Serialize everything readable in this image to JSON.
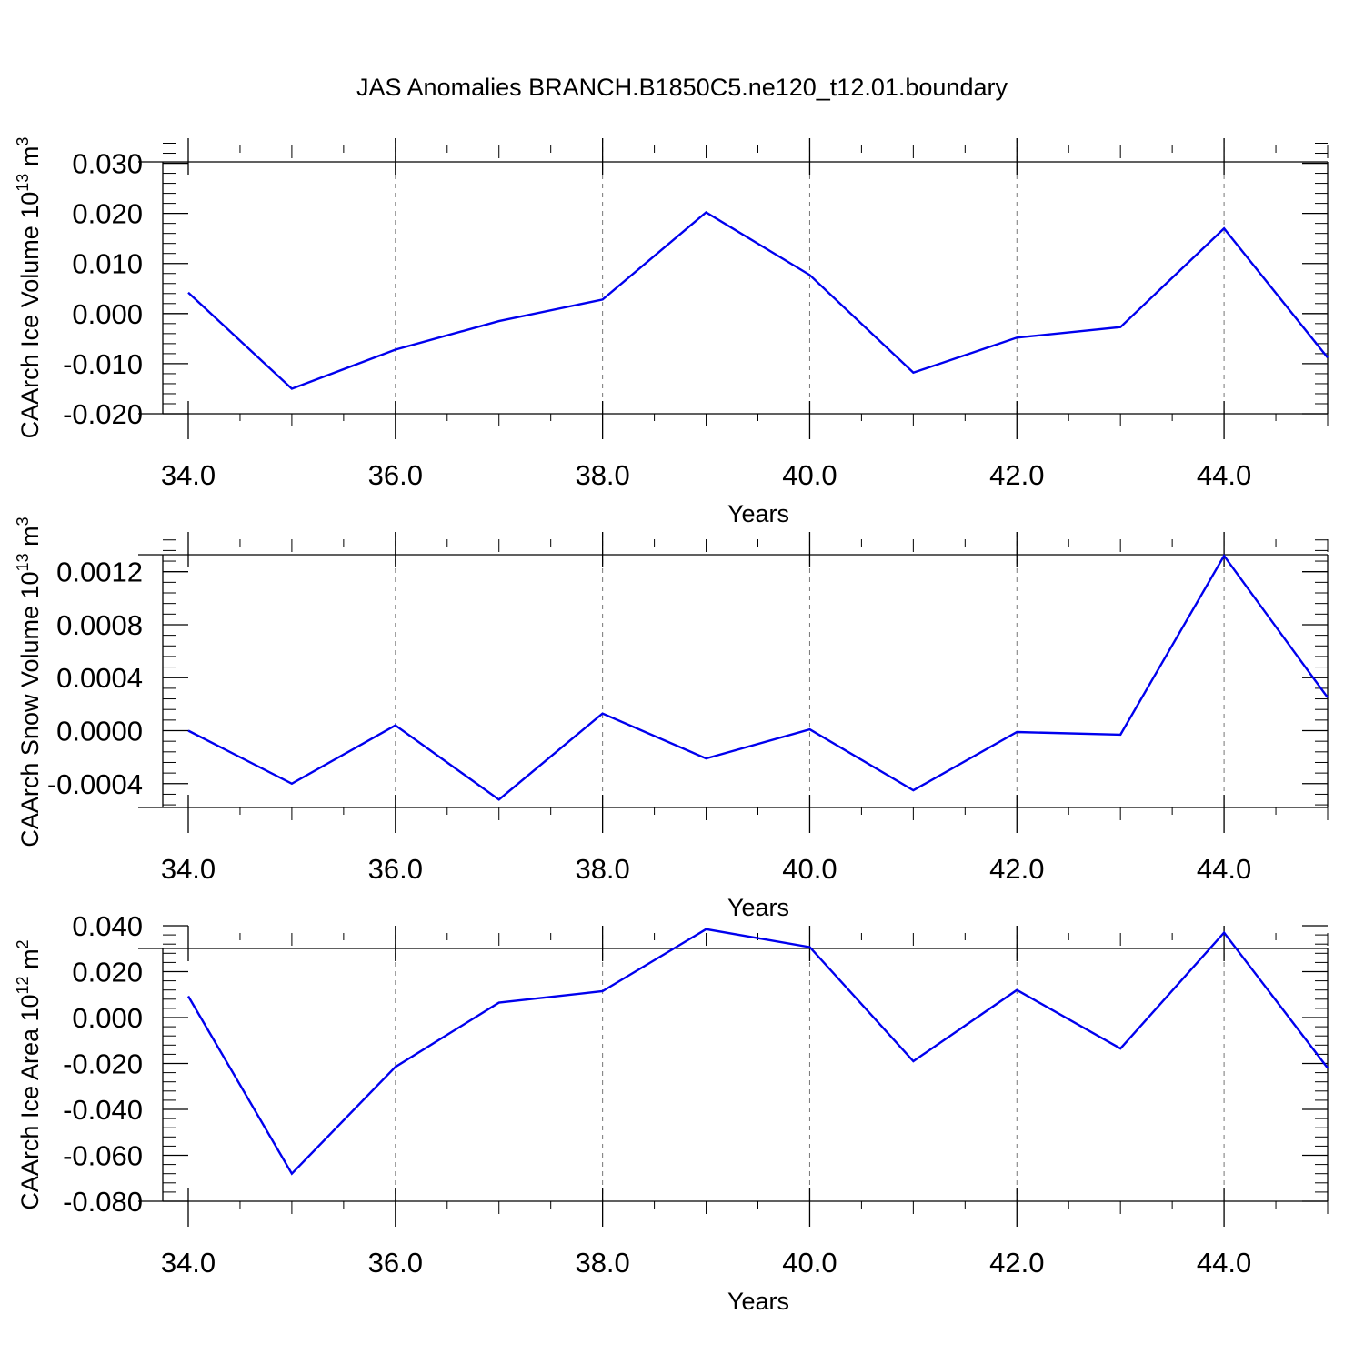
{
  "title": "JAS Anomalies BRANCH.B1850C5.ne120_t12.01.boundary",
  "line_color": "#0000ee",
  "chart_data": [
    {
      "type": "line",
      "ylabel_main": "CAArch Ice Volume 10",
      "ylabel_exp": "13",
      "ylabel_unit": " m",
      "ylabel_unit_exp": "3",
      "xlabel": "Years",
      "xlim": [
        34,
        45
      ],
      "ylim": [
        -0.02,
        0.035
      ],
      "xticks": [
        34,
        36,
        38,
        40,
        42,
        44
      ],
      "xtick_labels": [
        "34.0",
        "36.0",
        "38.0",
        "40.0",
        "42.0",
        "44.0"
      ],
      "yticks": [
        -0.02,
        -0.01,
        0.0,
        0.01,
        0.02,
        0.03
      ],
      "ytick_labels": [
        "-0.020",
        "-0.010",
        "0.000",
        "0.010",
        "0.020",
        "0.030"
      ],
      "grid": "vertical-dashed",
      "x": [
        34,
        35,
        36,
        37,
        38,
        39,
        40,
        41,
        42,
        43,
        44,
        45
      ],
      "y": [
        0.0042,
        -0.015,
        -0.0072,
        -0.0015,
        0.0028,
        0.0202,
        0.0077,
        -0.0118,
        -0.0048,
        -0.0027,
        0.017,
        -0.0088
      ]
    },
    {
      "type": "line",
      "ylabel_main": "CAArch Snow Volume 10",
      "ylabel_exp": "13",
      "ylabel_unit": " m",
      "ylabel_unit_exp": "3",
      "xlabel": "Years",
      "xlim": [
        34,
        45
      ],
      "ylim": [
        -0.00058,
        0.0015
      ],
      "xticks": [
        34,
        36,
        38,
        40,
        42,
        44
      ],
      "xtick_labels": [
        "34.0",
        "36.0",
        "38.0",
        "40.0",
        "42.0",
        "44.0"
      ],
      "yticks": [
        -0.0004,
        0.0,
        0.0004,
        0.0008,
        0.0012
      ],
      "ytick_labels": [
        "-0.0004",
        "0.0000",
        "0.0004",
        "0.0008",
        "0.0012"
      ],
      "grid": "vertical-dashed",
      "x": [
        34,
        35,
        36,
        37,
        38,
        39,
        40,
        41,
        42,
        43,
        44,
        45
      ],
      "y": [
        0.0,
        -0.0004,
        4e-05,
        -0.00052,
        0.00013,
        -0.00021,
        1e-05,
        -0.00045,
        -1e-05,
        -3e-05,
        0.00132,
        0.00025
      ]
    },
    {
      "type": "line",
      "ylabel_main": "CAArch Ice Area 10",
      "ylabel_exp": "12",
      "ylabel_unit": " m",
      "ylabel_unit_exp": "2",
      "xlabel": "Years",
      "xlim": [
        34,
        45
      ],
      "ylim": [
        -0.08,
        0.04
      ],
      "xticks": [
        34,
        36,
        38,
        40,
        42,
        44
      ],
      "xtick_labels": [
        "34.0",
        "36.0",
        "38.0",
        "40.0",
        "42.0",
        "44.0"
      ],
      "yticks": [
        -0.08,
        -0.06,
        -0.04,
        -0.02,
        0.0,
        0.02,
        0.04
      ],
      "ytick_labels": [
        "-0.080",
        "-0.060",
        "-0.040",
        "-0.020",
        "0.000",
        "0.020",
        "0.040"
      ],
      "grid": "vertical-dashed",
      "x": [
        34,
        35,
        36,
        37,
        38,
        39,
        40,
        41,
        42,
        43,
        44,
        45
      ],
      "y": [
        0.0093,
        -0.068,
        -0.0215,
        0.0065,
        0.0115,
        0.0385,
        0.0307,
        -0.019,
        0.012,
        -0.0135,
        0.037,
        -0.022
      ]
    }
  ]
}
